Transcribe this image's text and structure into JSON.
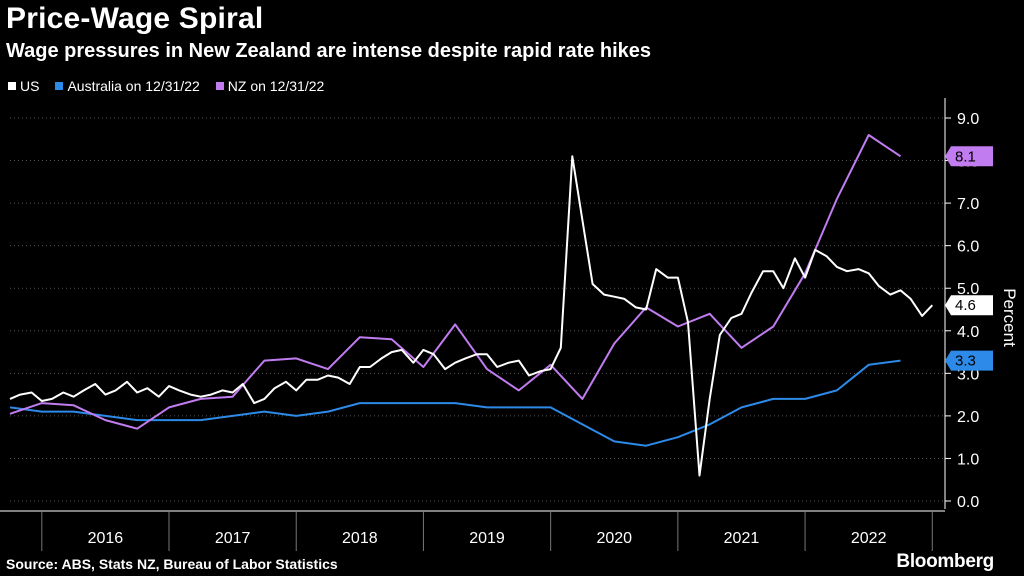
{
  "title": "Price-Wage Spiral",
  "subtitle": "Wage pressures in New Zealand are intense despite rapid rate hikes",
  "source": "Source: ABS, Stats NZ, Bureau of Labor Statistics",
  "brand": "Bloomberg",
  "legend": [
    {
      "label": "US",
      "color": "#ffffff"
    },
    {
      "label": "Australia on 12/31/22",
      "color": "#2d8ae8"
    },
    {
      "label": "NZ on 12/31/22",
      "color": "#c17cf0"
    }
  ],
  "chart_data": {
    "type": "line",
    "title": "Price-Wage Spiral",
    "ylabel": "Percent",
    "ylim": [
      0,
      9
    ],
    "yticks": [
      "0.0",
      "1.0",
      "2.0",
      "3.0",
      "4.0",
      "5.0",
      "6.0",
      "7.0",
      "8.0",
      "9.0"
    ],
    "xlim": [
      2015.75,
      2023.1
    ],
    "year_labels": [
      "2016",
      "2017",
      "2018",
      "2019",
      "2020",
      "2021",
      "2022"
    ],
    "series": [
      {
        "name": "US",
        "color": "#ffffff",
        "end_label": "4.6",
        "points": [
          [
            2015.75,
            2.4
          ],
          [
            2015.83,
            2.5
          ],
          [
            2015.92,
            2.55
          ],
          [
            2016.0,
            2.35
          ],
          [
            2016.08,
            2.4
          ],
          [
            2016.17,
            2.55
          ],
          [
            2016.25,
            2.45
          ],
          [
            2016.33,
            2.6
          ],
          [
            2016.42,
            2.75
          ],
          [
            2016.5,
            2.5
          ],
          [
            2016.58,
            2.6
          ],
          [
            2016.67,
            2.8
          ],
          [
            2016.75,
            2.55
          ],
          [
            2016.83,
            2.65
          ],
          [
            2016.92,
            2.45
          ],
          [
            2017.0,
            2.7
          ],
          [
            2017.08,
            2.6
          ],
          [
            2017.17,
            2.5
          ],
          [
            2017.25,
            2.45
          ],
          [
            2017.33,
            2.5
          ],
          [
            2017.42,
            2.6
          ],
          [
            2017.5,
            2.55
          ],
          [
            2017.58,
            2.75
          ],
          [
            2017.67,
            2.3
          ],
          [
            2017.75,
            2.4
          ],
          [
            2017.83,
            2.65
          ],
          [
            2017.92,
            2.8
          ],
          [
            2018.0,
            2.6
          ],
          [
            2018.08,
            2.85
          ],
          [
            2018.17,
            2.85
          ],
          [
            2018.25,
            2.95
          ],
          [
            2018.33,
            2.9
          ],
          [
            2018.42,
            2.75
          ],
          [
            2018.5,
            3.15
          ],
          [
            2018.58,
            3.15
          ],
          [
            2018.67,
            3.35
          ],
          [
            2018.75,
            3.5
          ],
          [
            2018.83,
            3.55
          ],
          [
            2018.92,
            3.25
          ],
          [
            2019.0,
            3.55
          ],
          [
            2019.08,
            3.45
          ],
          [
            2019.17,
            3.1
          ],
          [
            2019.25,
            3.25
          ],
          [
            2019.33,
            3.35
          ],
          [
            2019.42,
            3.45
          ],
          [
            2019.5,
            3.45
          ],
          [
            2019.58,
            3.15
          ],
          [
            2019.67,
            3.25
          ],
          [
            2019.75,
            3.3
          ],
          [
            2019.83,
            2.95
          ],
          [
            2019.92,
            3.05
          ],
          [
            2020.0,
            3.1
          ],
          [
            2020.08,
            3.6
          ],
          [
            2020.17,
            8.1
          ],
          [
            2020.25,
            6.6
          ],
          [
            2020.33,
            5.1
          ],
          [
            2020.42,
            4.85
          ],
          [
            2020.5,
            4.8
          ],
          [
            2020.58,
            4.75
          ],
          [
            2020.67,
            4.55
          ],
          [
            2020.75,
            4.5
          ],
          [
            2020.83,
            5.45
          ],
          [
            2020.92,
            5.25
          ],
          [
            2021.0,
            5.25
          ],
          [
            2021.08,
            4.2
          ],
          [
            2021.17,
            0.6
          ],
          [
            2021.25,
            2.4
          ],
          [
            2021.33,
            3.9
          ],
          [
            2021.42,
            4.3
          ],
          [
            2021.5,
            4.4
          ],
          [
            2021.58,
            4.9
          ],
          [
            2021.67,
            5.4
          ],
          [
            2021.75,
            5.4
          ],
          [
            2021.83,
            5.0
          ],
          [
            2021.92,
            5.7
          ],
          [
            2022.0,
            5.25
          ],
          [
            2022.08,
            5.9
          ],
          [
            2022.17,
            5.75
          ],
          [
            2022.25,
            5.5
          ],
          [
            2022.33,
            5.4
          ],
          [
            2022.42,
            5.45
          ],
          [
            2022.5,
            5.35
          ],
          [
            2022.58,
            5.05
          ],
          [
            2022.67,
            4.85
          ],
          [
            2022.75,
            4.95
          ],
          [
            2022.83,
            4.75
          ],
          [
            2022.92,
            4.35
          ],
          [
            2023.0,
            4.6
          ]
        ]
      },
      {
        "name": "Australia on 12/31/22",
        "color": "#2d8ae8",
        "end_label": "3.3",
        "points": [
          [
            2015.75,
            2.2
          ],
          [
            2016.0,
            2.1
          ],
          [
            2016.25,
            2.1
          ],
          [
            2016.5,
            2.0
          ],
          [
            2016.75,
            1.9
          ],
          [
            2017.0,
            1.9
          ],
          [
            2017.25,
            1.9
          ],
          [
            2017.5,
            2.0
          ],
          [
            2017.75,
            2.1
          ],
          [
            2018.0,
            2.0
          ],
          [
            2018.25,
            2.1
          ],
          [
            2018.5,
            2.3
          ],
          [
            2018.75,
            2.3
          ],
          [
            2019.0,
            2.3
          ],
          [
            2019.25,
            2.3
          ],
          [
            2019.5,
            2.2
          ],
          [
            2019.75,
            2.2
          ],
          [
            2020.0,
            2.2
          ],
          [
            2020.25,
            1.8
          ],
          [
            2020.5,
            1.4
          ],
          [
            2020.75,
            1.3
          ],
          [
            2021.0,
            1.5
          ],
          [
            2021.25,
            1.8
          ],
          [
            2021.5,
            2.2
          ],
          [
            2021.75,
            2.4
          ],
          [
            2022.0,
            2.4
          ],
          [
            2022.25,
            2.6
          ],
          [
            2022.5,
            3.2
          ],
          [
            2022.75,
            3.3
          ]
        ]
      },
      {
        "name": "NZ on 12/31/22",
        "color": "#c17cf0",
        "end_label": "8.1",
        "points": [
          [
            2015.75,
            2.05
          ],
          [
            2016.0,
            2.3
          ],
          [
            2016.25,
            2.25
          ],
          [
            2016.5,
            1.9
          ],
          [
            2016.75,
            1.7
          ],
          [
            2017.0,
            2.2
          ],
          [
            2017.25,
            2.4
          ],
          [
            2017.5,
            2.45
          ],
          [
            2017.75,
            3.3
          ],
          [
            2018.0,
            3.35
          ],
          [
            2018.25,
            3.1
          ],
          [
            2018.5,
            3.85
          ],
          [
            2018.75,
            3.8
          ],
          [
            2019.0,
            3.15
          ],
          [
            2019.25,
            4.15
          ],
          [
            2019.5,
            3.1
          ],
          [
            2019.75,
            2.6
          ],
          [
            2020.0,
            3.2
          ],
          [
            2020.25,
            2.4
          ],
          [
            2020.5,
            3.7
          ],
          [
            2020.75,
            4.55
          ],
          [
            2021.0,
            4.1
          ],
          [
            2021.25,
            4.4
          ],
          [
            2021.5,
            3.6
          ],
          [
            2021.75,
            4.1
          ],
          [
            2022.0,
            5.35
          ],
          [
            2022.25,
            7.1
          ],
          [
            2022.5,
            8.6
          ],
          [
            2022.75,
            8.1
          ]
        ]
      }
    ]
  }
}
